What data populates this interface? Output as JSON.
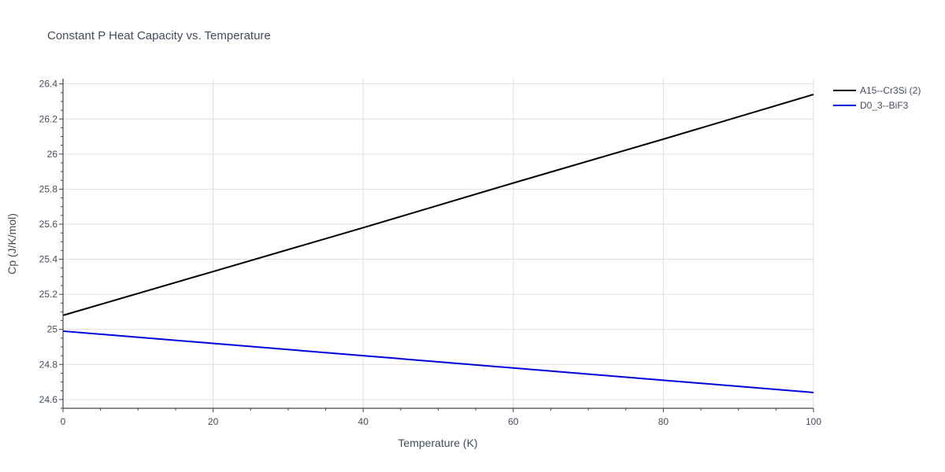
{
  "chart_data": {
    "type": "line",
    "title": "Constant P Heat Capacity vs. Temperature",
    "xlabel": "Temperature (K)",
    "ylabel": "Cp (J/K/mol)",
    "xlim": [
      0,
      100
    ],
    "ylim": [
      24.55,
      26.43
    ],
    "x_ticks": [
      0,
      20,
      40,
      60,
      80,
      100
    ],
    "x_tick_labels": [
      "0",
      "20",
      "40",
      "60",
      "80",
      "100"
    ],
    "y_ticks": [
      24.6,
      24.8,
      25.0,
      25.2,
      25.4,
      25.6,
      25.8,
      26.0,
      26.2,
      26.4
    ],
    "y_tick_labels": [
      "24.6",
      "24.8",
      "25",
      "25.2",
      "25.4",
      "25.6",
      "25.8",
      "26",
      "26.2",
      "26.4"
    ],
    "grid": true,
    "legend_position": "top-right, outside plot",
    "series": [
      {
        "name": "A15--Cr3Si (2)",
        "color": "#000000",
        "x": [
          0,
          20,
          40,
          60,
          80,
          100
        ],
        "values": [
          25.08,
          25.33,
          25.58,
          25.835,
          26.085,
          26.34
        ]
      },
      {
        "name": "D0_3--BiF3",
        "color": "#0000dd",
        "x": [
          0,
          20,
          40,
          60,
          80,
          100
        ],
        "values": [
          24.99,
          24.92,
          24.85,
          24.78,
          24.71,
          24.64
        ]
      }
    ]
  }
}
